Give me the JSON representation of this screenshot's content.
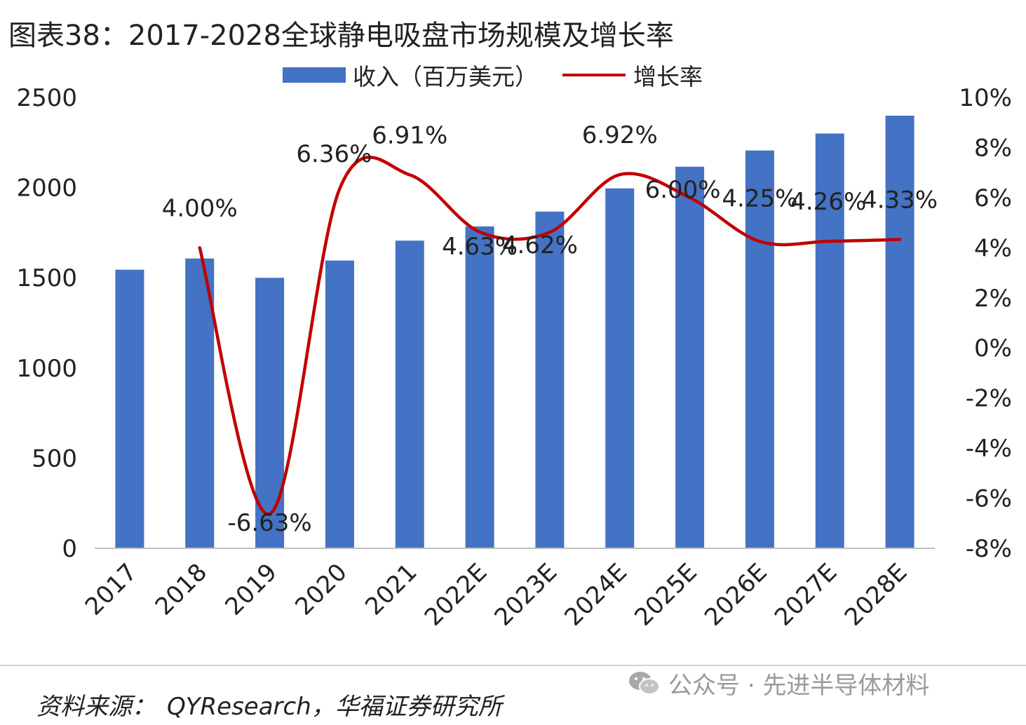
{
  "title": "图表38：2017-2028全球静电吸盘市场规模及增长率",
  "source": {
    "label": "资料来源：",
    "value": "QYResearch，华福证券研究所"
  },
  "watermark": {
    "icon": "wechat-icon",
    "text": "公众号 · 先进半导体材料"
  },
  "colors": {
    "bar": "#4472C4",
    "line": "#C00000",
    "axis": "#bfbfbf"
  },
  "chart_data": {
    "type": "bar",
    "categories": [
      "2017",
      "2018",
      "2019",
      "2020",
      "2021",
      "2022E",
      "2023E",
      "2024E",
      "2025E",
      "2026E",
      "2027E",
      "2028E"
    ],
    "series": [
      {
        "name": "收入（百万美元）",
        "type": "bar",
        "axis": "left",
        "values": [
          1545,
          1607,
          1500,
          1596,
          1706,
          1785,
          1867,
          1996,
          2116,
          2206,
          2300,
          2399
        ]
      },
      {
        "name": "增长率",
        "type": "line",
        "axis": "right",
        "values": [
          null,
          4.0,
          -6.63,
          6.36,
          6.91,
          4.63,
          4.62,
          6.92,
          6.0,
          4.25,
          4.26,
          4.33
        ],
        "labels": [
          "",
          "4.00%",
          "-6.63%",
          "6.36%",
          "6.91%",
          "4.63%",
          "4.62%",
          "6.92%",
          "6.00%",
          "4.25%",
          "4.26%",
          "4.33%"
        ]
      }
    ],
    "y_left": {
      "ylim": [
        0,
        2500
      ],
      "ticks": [
        "0",
        "500",
        "1000",
        "1500",
        "2000",
        "2500"
      ]
    },
    "y_right": {
      "ylim": [
        -8,
        10
      ],
      "ticks": [
        "-8%",
        "-6%",
        "-4%",
        "-2%",
        "0%",
        "2%",
        "4%",
        "6%",
        "8%",
        "10%"
      ]
    },
    "legend": "top-center",
    "grid": false
  }
}
